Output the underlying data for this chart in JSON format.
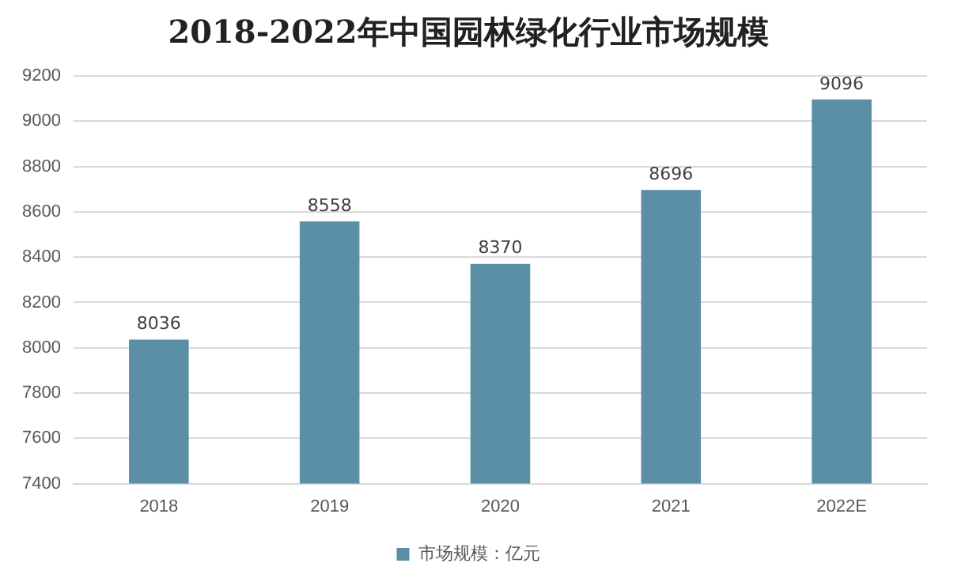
{
  "chart_data": {
    "type": "bar",
    "title": "2018-2022年中国园林绿化行业市场规模",
    "categories": [
      "2018",
      "2019",
      "2020",
      "2021",
      "2022E"
    ],
    "series": [
      {
        "name": "市场规模：亿元",
        "color": "#5b8fa6",
        "values": [
          8036,
          8558,
          8370,
          8696,
          9096
        ]
      }
    ],
    "ylim": [
      7400,
      9200
    ],
    "yticks": [
      7400,
      7600,
      7800,
      8000,
      8200,
      8400,
      8600,
      8800,
      9000,
      9200
    ],
    "grid": "y",
    "legend": "bottom",
    "data_labels": true
  }
}
